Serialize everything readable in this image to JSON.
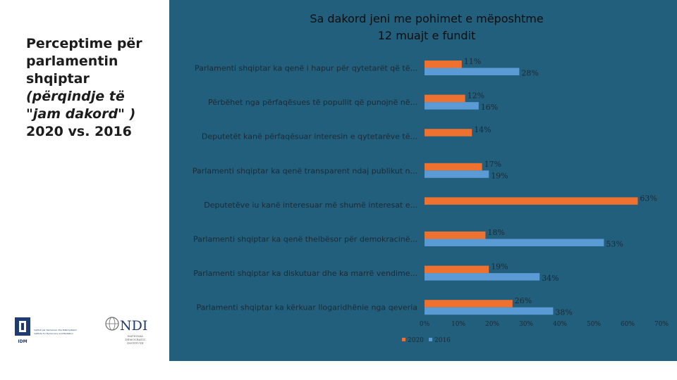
{
  "side_heading": {
    "line1": "Perceptime për",
    "line2": "parlamentin",
    "line3": "shqiptar",
    "line4": "(përqindje të",
    "line5": "\"jam dakord\" )",
    "line6": "2020 vs. 2016"
  },
  "logos": {
    "idm_mark": "IDM",
    "idm_name_line1": "Instituti për Demokraci dhe Ndërmjetësim",
    "idm_name_line2": "Institute for Democracy and Mediation",
    "ndi_mark": "NDI",
    "ndi_name_line1": "NATIONAL",
    "ndi_name_line2": "DEMOCRATIC",
    "ndi_name_line3": "INSTITUTE"
  },
  "colors": {
    "panel": "#215f7c",
    "series_2020": "#ee7130",
    "series_2016": "#5b9bd5"
  },
  "chart_data": {
    "type": "bar",
    "orientation": "horizontal",
    "title": "Sa dakord jeni me pohimet e mëposhtme 12 muajt e fundit",
    "title_line1": "Sa dakord jeni me pohimet e mëposhtme",
    "title_line2": "12 muajt e fundit",
    "categories": [
      "Parlamenti shqiptar ka qenë i hapur për qytetarët që të...",
      "Përbëhet nga përfaqësues të popullit që punojnë në...",
      "Deputetët kanë përfaqësuar interesin e qytetarëve të...",
      "Parlamenti shqiptar ka qenë transparent ndaj publikut n...",
      "Deputetëve iu kanë interesuar më shumë interesat e...",
      "Parlamenti shqiptar ka qenë thelbësor për demokracinë...",
      "Parlamenti shqiptar ka diskutuar dhe ka marrë vendime...",
      "Parlamenti shqiptar ka kërkuar llogaridhënie nga qeveria"
    ],
    "series": [
      {
        "name": "2020",
        "values": [
          11,
          12,
          14,
          17,
          63,
          18,
          19,
          26
        ],
        "labels": [
          "11%",
          "12%",
          "14%",
          "17%",
          "63%",
          "18%",
          "19%",
          "26%"
        ]
      },
      {
        "name": "2016",
        "values": [
          28,
          16,
          null,
          19,
          null,
          53,
          34,
          38
        ],
        "labels": [
          "28%",
          "16%",
          "",
          "19%",
          "",
          "53%",
          "34%",
          "38%"
        ]
      }
    ],
    "xlim": [
      0,
      70
    ],
    "ticks": [
      0,
      10,
      20,
      30,
      40,
      50,
      60,
      70
    ],
    "tick_labels": [
      "0%",
      "10%",
      "20%",
      "30%",
      "40%",
      "50%",
      "60%",
      "70%"
    ],
    "legend": [
      "2020",
      "2016"
    ],
    "legend_position": "bottom-left",
    "grid": false
  }
}
